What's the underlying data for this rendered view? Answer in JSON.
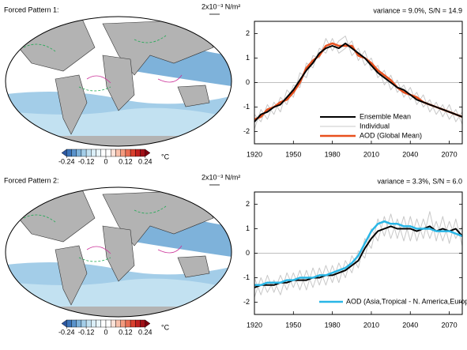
{
  "maps": [
    {
      "label": "Forced Pattern 1:",
      "vector_label": "2x10⁻³ N/m²",
      "units": "°C",
      "colorbar": {
        "lim": [
          -0.27,
          0.27
        ],
        "ticks": [
          -0.24,
          -0.12,
          0,
          0.12,
          0.24
        ],
        "colors": [
          "#2c56a0",
          "#3a72b8",
          "#5a93cb",
          "#7eb2da",
          "#a3cde8",
          "#c2e1f1",
          "#daeef7",
          "#eaf6fb",
          "#ffffff",
          "#ffffff",
          "#fde2d8",
          "#f9c1ac",
          "#f39a7e",
          "#e86d53",
          "#d8402e",
          "#c0201f",
          "#a01018",
          "#7a0010"
        ]
      }
    },
    {
      "label": "Forced Pattern 2:",
      "vector_label": "2x10⁻³ N/m²",
      "units": "°C",
      "colorbar": {
        "lim": [
          -0.27,
          0.27
        ],
        "ticks": [
          -0.24,
          -0.12,
          0,
          0.12,
          0.24
        ],
        "colors": [
          "#2c56a0",
          "#3a72b8",
          "#5a93cb",
          "#7eb2da",
          "#a3cde8",
          "#c2e1f1",
          "#daeef7",
          "#eaf6fb",
          "#ffffff",
          "#ffffff",
          "#fde2d8",
          "#f9c1ac",
          "#f39a7e",
          "#e86d53",
          "#d8402e",
          "#c0201f",
          "#a01018",
          "#7a0010"
        ]
      }
    }
  ],
  "chart_data": [
    {
      "type": "line",
      "title": "variance =  9.0%, S/N = 14.9",
      "x": [
        1920,
        1925,
        1930,
        1935,
        1940,
        1945,
        1950,
        1955,
        1960,
        1965,
        1970,
        1975,
        1980,
        1985,
        1990,
        1995,
        2000,
        2005,
        2010,
        2015,
        2020,
        2025,
        2030,
        2035,
        2040,
        2045,
        2050,
        2055,
        2060,
        2065,
        2070,
        2075,
        2080
      ],
      "xlim": [
        1920,
        2080
      ],
      "xticks": [
        1920,
        1950,
        1980,
        2010,
        2040,
        2070
      ],
      "ylim": [
        -2.5,
        2.5
      ],
      "yticks": [
        -2,
        -1,
        0,
        1,
        2
      ],
      "hline": 0,
      "series": [
        {
          "name": "Individual",
          "color": "#c8c8c8",
          "width": 1,
          "values": [
            -1.9,
            -1.1,
            -1.5,
            -0.8,
            -1.2,
            -0.3,
            -0.6,
            0.4,
            0.2,
            1.1,
            1.0,
            1.8,
            1.3,
            1.7,
            1.9,
            1.1,
            1.4,
            0.7,
            1.0,
            0.2,
            0.5,
            -0.3,
            0.1,
            -0.6,
            -0.2,
            -0.9,
            -0.5,
            -1.2,
            -0.8,
            -1.4,
            -0.9,
            -1.6,
            -1.2
          ]
        },
        {
          "color": "#c8c8c8",
          "width": 1,
          "values": [
            -1.3,
            -1.6,
            -0.9,
            -1.3,
            -0.6,
            -0.9,
            -0.1,
            -0.2,
            0.8,
            0.6,
            1.4,
            1.2,
            1.8,
            1.2,
            1.4,
            1.7,
            0.9,
            1.3,
            0.5,
            0.7,
            -0.1,
            0.3,
            -0.4,
            -0.1,
            -0.7,
            -0.4,
            -1.0,
            -0.7,
            -1.3,
            -0.9,
            -1.5,
            -1.1,
            -1.7
          ]
        },
        {
          "name": "AOD (Global Mean)",
          "color": "#e8501e",
          "width": 2.5,
          "values": [
            -1.5,
            -1.4,
            -1.1,
            -1.0,
            -0.8,
            -0.7,
            -0.4,
            0.0,
            0.6,
            0.9,
            1.1,
            1.5,
            1.6,
            1.5,
            1.5,
            1.5,
            1.1,
            1.0,
            0.8,
            0.5,
            0.3,
            0.1,
            -0.2,
            -0.4,
            -0.5,
            -0.6,
            -0.8,
            -0.9,
            -1.0,
            -1.1,
            -1.2,
            -1.3,
            -1.4
          ]
        },
        {
          "name": "Ensemble Mean",
          "color": "#000000",
          "width": 2,
          "values": [
            -1.6,
            -1.3,
            -1.2,
            -1.0,
            -0.9,
            -0.6,
            -0.3,
            0.1,
            0.5,
            0.8,
            1.2,
            1.4,
            1.5,
            1.4,
            1.6,
            1.4,
            1.2,
            1.0,
            0.7,
            0.4,
            0.2,
            0.0,
            -0.2,
            -0.3,
            -0.5,
            -0.7,
            -0.8,
            -0.9,
            -1.0,
            -1.1,
            -1.2,
            -1.3,
            -1.4
          ]
        }
      ],
      "legend_order": [
        3,
        0,
        2
      ]
    },
    {
      "type": "line",
      "title": "variance =  3.3%, S/N = 6.0",
      "x": [
        1920,
        1925,
        1930,
        1935,
        1940,
        1945,
        1950,
        1955,
        1960,
        1965,
        1970,
        1975,
        1980,
        1985,
        1990,
        1995,
        2000,
        2005,
        2010,
        2015,
        2020,
        2025,
        2030,
        2035,
        2040,
        2045,
        2050,
        2055,
        2060,
        2065,
        2070,
        2075,
        2080
      ],
      "xlim": [
        1920,
        2080
      ],
      "xticks": [
        1920,
        1950,
        1980,
        2010,
        2040,
        2070
      ],
      "ylim": [
        -2.5,
        2.5
      ],
      "yticks": [
        -2,
        -1,
        0,
        1,
        2
      ],
      "hline": 0,
      "series": [
        {
          "color": "#c8c8c8",
          "width": 1,
          "values": [
            -1.8,
            -1.0,
            -1.6,
            -1.1,
            -1.7,
            -0.8,
            -1.4,
            -0.7,
            -1.5,
            -0.6,
            -1.3,
            -0.5,
            -1.2,
            -0.4,
            -1.0,
            -0.1,
            -0.6,
            0.6,
            0.2,
            1.4,
            0.7,
            1.6,
            0.6,
            1.5,
            0.5,
            1.4,
            0.6,
            1.7,
            0.5,
            1.5,
            0.4,
            1.4,
            0.3
          ]
        },
        {
          "color": "#c8c8c8",
          "width": 1,
          "values": [
            -1.0,
            -1.7,
            -0.9,
            -1.6,
            -0.9,
            -1.5,
            -0.8,
            -1.5,
            -0.7,
            -1.4,
            -0.6,
            -1.3,
            -0.5,
            -1.2,
            -0.3,
            -0.8,
            0.1,
            -0.2,
            1.0,
            0.5,
            1.5,
            0.6,
            1.4,
            0.5,
            1.5,
            0.5,
            1.4,
            0.6,
            1.3,
            0.5,
            1.3,
            0.6,
            1.1
          ]
        },
        {
          "color": "#000000",
          "width": 2,
          "values": [
            -1.4,
            -1.3,
            -1.3,
            -1.3,
            -1.2,
            -1.2,
            -1.1,
            -1.1,
            -1.1,
            -1.0,
            -1.0,
            -0.9,
            -0.9,
            -0.8,
            -0.7,
            -0.5,
            -0.3,
            0.2,
            0.6,
            0.9,
            1.0,
            1.1,
            1.0,
            1.0,
            1.0,
            0.9,
            1.0,
            1.1,
            0.9,
            1.0,
            0.9,
            1.0,
            0.7
          ]
        },
        {
          "name": "AOD (Asia,Tropical - N. America,Europe)",
          "color": "#29b6e6",
          "width": 2.5,
          "values": [
            -1.3,
            -1.3,
            -1.2,
            -1.2,
            -1.2,
            -1.1,
            -1.1,
            -1.0,
            -1.0,
            -1.0,
            -0.9,
            -0.9,
            -0.8,
            -0.7,
            -0.6,
            -0.4,
            -0.1,
            0.4,
            0.9,
            1.2,
            1.3,
            1.2,
            1.2,
            1.1,
            1.1,
            1.0,
            1.0,
            1.0,
            0.9,
            0.9,
            0.9,
            0.8,
            0.7
          ]
        }
      ],
      "legend_order": [
        3
      ]
    }
  ]
}
